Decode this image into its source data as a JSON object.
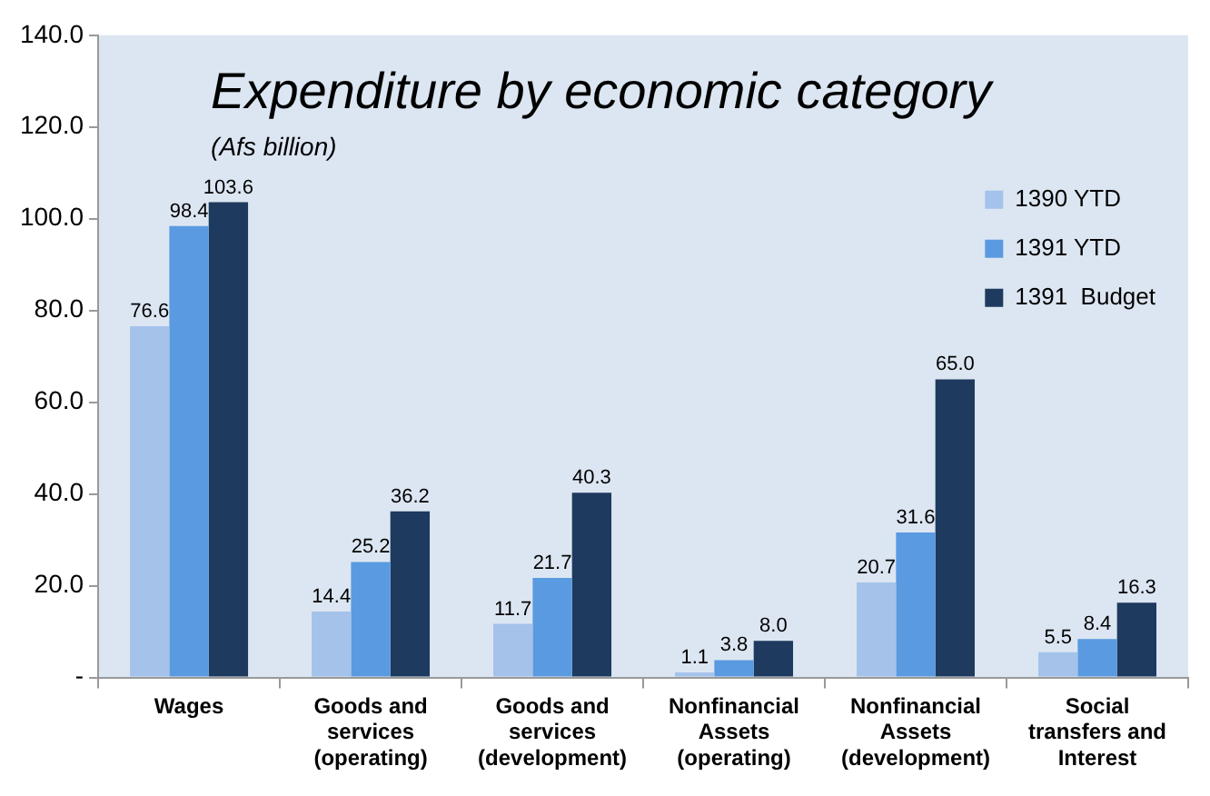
{
  "chart_data": {
    "type": "bar",
    "title": "Expenditure by economic category",
    "subtitle": "(Afs billion)",
    "categories": [
      "Wages",
      "Goods and services (operating)",
      "Goods and services (development)",
      "Nonfinancial Assets (operating)",
      "Nonfinancial Assets (development)",
      "Social transfers and Interest"
    ],
    "series": [
      {
        "name": "1390 YTD",
        "color": "#a4c2ea",
        "values": [
          76.6,
          14.4,
          11.7,
          1.1,
          20.7,
          5.5
        ],
        "value_labels": [
          "76.6",
          "14.4",
          "11.7",
          "1.1",
          "20.7",
          "5.5"
        ]
      },
      {
        "name": "1391 YTD",
        "color": "#5a9ae0",
        "values": [
          98.4,
          25.2,
          21.7,
          3.8,
          31.6,
          8.4
        ],
        "value_labels": [
          "98.4",
          "25.2",
          "21.7",
          "3.8",
          "31.6",
          "8.4"
        ]
      },
      {
        "name": "1391  Budget",
        "color": "#1e3a5f",
        "values": [
          103.6,
          36.2,
          40.3,
          8.0,
          65.0,
          16.3
        ],
        "value_labels": [
          "103.6",
          "36.2",
          "40.3",
          "8.0",
          "65.0",
          "16.3"
        ]
      }
    ],
    "ylim": [
      0,
      140
    ],
    "yticks": [
      {
        "value": 0,
        "label": "-"
      },
      {
        "value": 20,
        "label": "20.0"
      },
      {
        "value": 40,
        "label": "40.0"
      },
      {
        "value": 60,
        "label": "60.0"
      },
      {
        "value": 80,
        "label": "80.0"
      },
      {
        "value": 100,
        "label": "100.0"
      },
      {
        "value": 120,
        "label": "120.0"
      },
      {
        "value": 140,
        "label": "140.0"
      }
    ],
    "grid": false,
    "legend": "top right"
  }
}
